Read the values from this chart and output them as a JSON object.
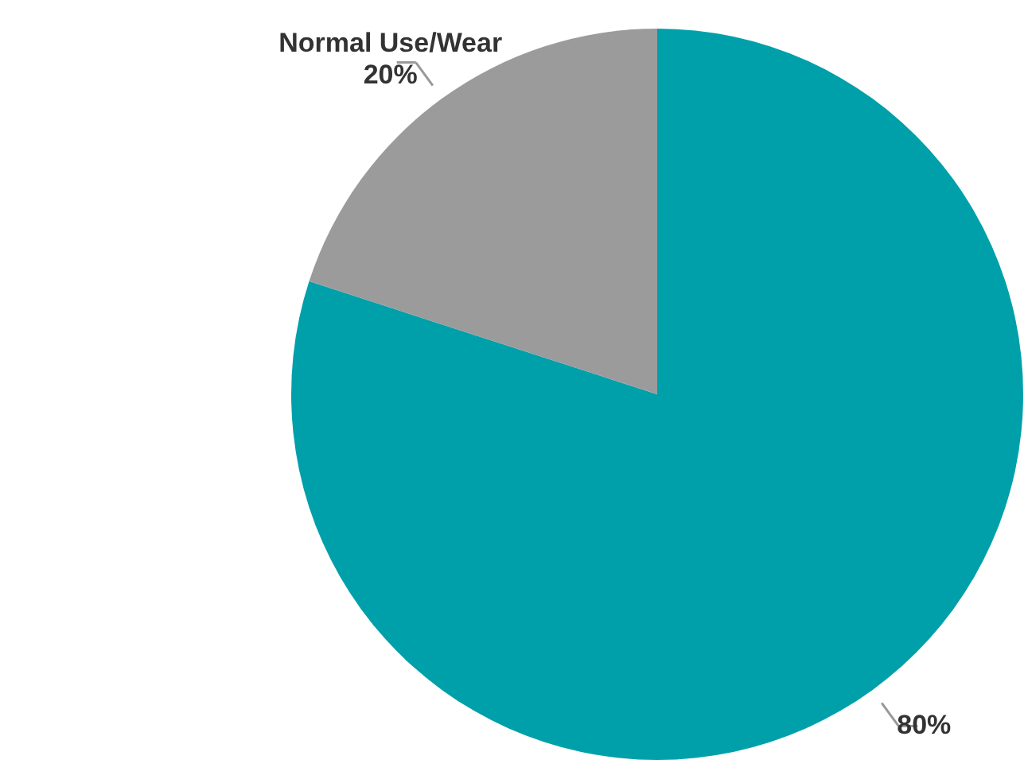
{
  "chart_data": {
    "type": "pie",
    "categories": [
      null,
      "Normal Use/Wear"
    ],
    "values": [
      80,
      20
    ],
    "colors": [
      "#00a0aa",
      "#9b9b9b"
    ],
    "value_labels": [
      "80%",
      "20%"
    ]
  }
}
